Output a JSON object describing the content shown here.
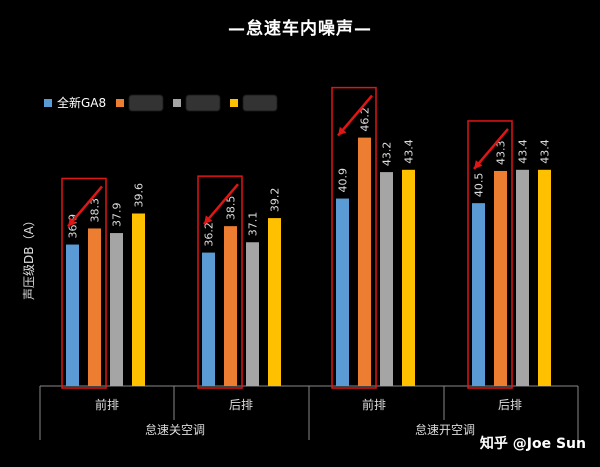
{
  "chart_data": {
    "type": "bar",
    "title": "—怠速车内噪声—",
    "ylabel": "声压级DB（A）",
    "ylim": [
      0,
      50
    ],
    "groups": [
      {
        "label": "前排",
        "parent": "怠速关空调"
      },
      {
        "label": "后排",
        "parent": "怠速关空调"
      },
      {
        "label": "前排",
        "parent": "怠速开空调"
      },
      {
        "label": "后排",
        "parent": "怠速开空调"
      }
    ],
    "parent_groups": [
      "怠速关空调",
      "怠速开空调"
    ],
    "series": [
      {
        "name": "全新GA8",
        "color": "#5b9bd5",
        "values": [
          36.9,
          36.2,
          40.9,
          40.5
        ]
      },
      {
        "name": "",
        "color": "#ed7d31",
        "values": [
          38.3,
          38.5,
          46.2,
          43.3
        ]
      },
      {
        "name": "",
        "color": "#a5a5a5",
        "values": [
          37.9,
          37.1,
          43.2,
          43.4
        ]
      },
      {
        "name": "",
        "color": "#ffc000",
        "values": [
          39.6,
          39.2,
          43.4,
          43.4
        ]
      }
    ],
    "grid": false,
    "legend": "top-left",
    "highlight_color": "#e01515"
  },
  "watermark": {
    "text": "知乎 @Joe Sun"
  }
}
